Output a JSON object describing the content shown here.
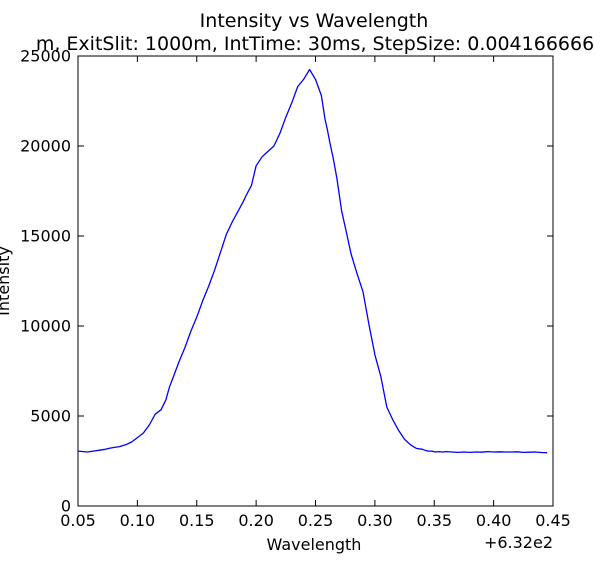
{
  "chart_data": {
    "type": "line",
    "title": "Intensity vs Wavelength",
    "subtitle": "m, ExitSlit: 1000m, IntTime: 30ms, StepSize: 0.004166666",
    "xlabel": "Wavelength",
    "ylabel": "Intensity",
    "x_offset_label": "+6.32e2",
    "xlim": [
      0.05,
      0.45
    ],
    "ylim": [
      0,
      25000
    ],
    "xticks": [
      0.05,
      0.1,
      0.15,
      0.2,
      0.25,
      0.3,
      0.35,
      0.4,
      0.45
    ],
    "xtick_labels": [
      "0.05",
      "0.10",
      "0.15",
      "0.20",
      "0.25",
      "0.30",
      "0.35",
      "0.40",
      "0.45"
    ],
    "yticks": [
      0,
      5000,
      10000,
      15000,
      20000,
      25000
    ],
    "ytick_labels": [
      "0",
      "5000",
      "10000",
      "15000",
      "20000",
      "25000"
    ],
    "grid": false,
    "line_color": "#0000ff",
    "series": [
      {
        "x": [
          0.05,
          0.058,
          0.063,
          0.068,
          0.073,
          0.076,
          0.08,
          0.085,
          0.09,
          0.095,
          0.1,
          0.105,
          0.11,
          0.115,
          0.12,
          0.124,
          0.127,
          0.131,
          0.135,
          0.14,
          0.145,
          0.15,
          0.155,
          0.16,
          0.165,
          0.17,
          0.175,
          0.18,
          0.185,
          0.189,
          0.192,
          0.196,
          0.2,
          0.205,
          0.21,
          0.215,
          0.22,
          0.225,
          0.23,
          0.235,
          0.24,
          0.245,
          0.25,
          0.255,
          0.258,
          0.26,
          0.262,
          0.265,
          0.268,
          0.272,
          0.276,
          0.28,
          0.285,
          0.29,
          0.295,
          0.3,
          0.305,
          0.31,
          0.315,
          0.32,
          0.325,
          0.33,
          0.335,
          0.34,
          0.342,
          0.345,
          0.348,
          0.351,
          0.354,
          0.357,
          0.36,
          0.365,
          0.37,
          0.375,
          0.38,
          0.385,
          0.39,
          0.395,
          0.4,
          0.405,
          0.41,
          0.415,
          0.42,
          0.425,
          0.43,
          0.435,
          0.44,
          0.445
        ],
        "y": [
          3050,
          3000,
          3050,
          3100,
          3150,
          3200,
          3250,
          3300,
          3400,
          3550,
          3800,
          4050,
          4500,
          5100,
          5350,
          5900,
          6600,
          7300,
          8000,
          8800,
          9700,
          10500,
          11400,
          12200,
          13100,
          14100,
          15100,
          15800,
          16400,
          16900,
          17300,
          17800,
          18900,
          19400,
          19700,
          20000,
          20700,
          21600,
          22400,
          23300,
          23700,
          24250,
          23700,
          22800,
          21500,
          20900,
          20200,
          19300,
          18200,
          16400,
          15200,
          14000,
          12900,
          11900,
          10100,
          8400,
          7200,
          5500,
          4800,
          4200,
          3700,
          3400,
          3200,
          3150,
          3100,
          3050,
          3050,
          3000,
          3020,
          3000,
          3020,
          3000,
          2980,
          3000,
          2980,
          3000,
          2990,
          3020,
          3000,
          3010,
          3000,
          3000,
          3010,
          2980,
          2990,
          3000,
          2970,
          2960
        ]
      }
    ]
  }
}
